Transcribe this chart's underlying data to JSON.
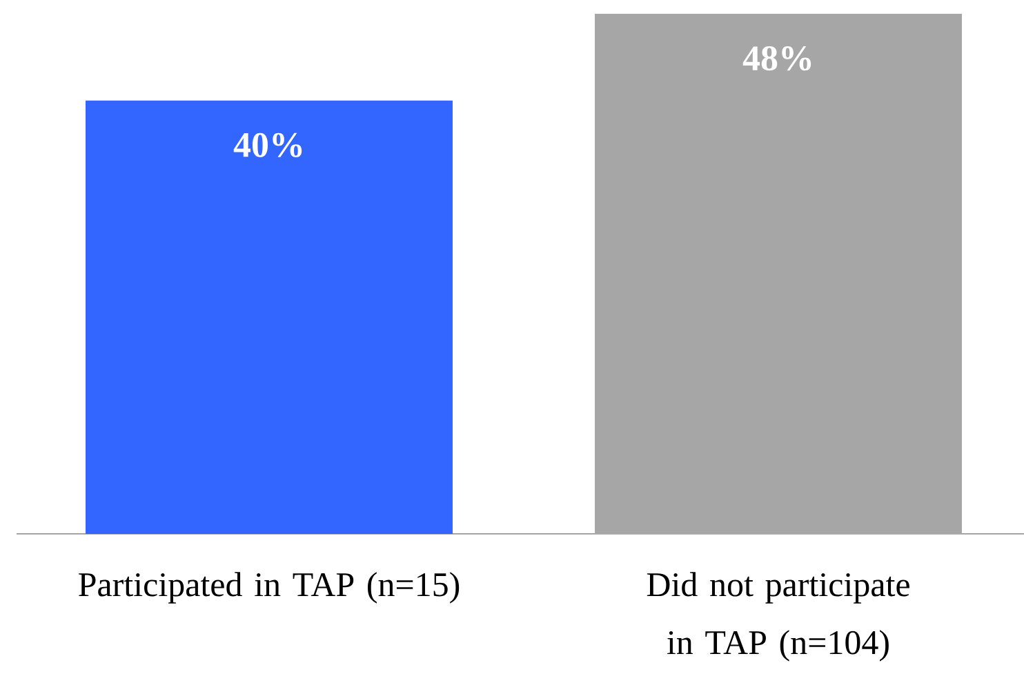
{
  "chart_data": {
    "type": "bar",
    "categories": [
      "Participated in TAP (n=15)",
      "Did not participate in TAP (n=104)"
    ],
    "values": [
      40,
      48
    ],
    "colors": [
      "#3366ff",
      "#a6a6a6"
    ],
    "value_labels": [
      "40%",
      "48%"
    ]
  }
}
